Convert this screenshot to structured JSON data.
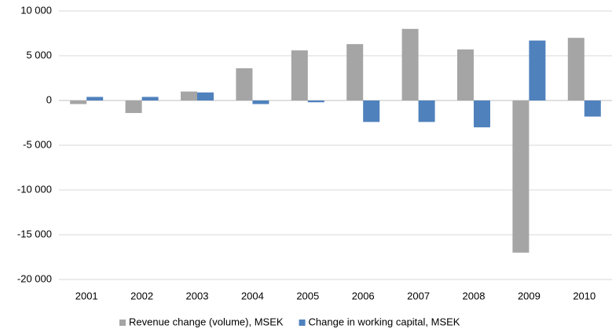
{
  "chart_data": {
    "type": "bar",
    "categories": [
      "2001",
      "2002",
      "2003",
      "2004",
      "2005",
      "2006",
      "2007",
      "2008",
      "2009",
      "2010"
    ],
    "series": [
      {
        "name": "Revenue change (volume), MSEK",
        "color": "#a5a5a5",
        "values": [
          -400,
          -1400,
          1000,
          3600,
          5600,
          6300,
          8000,
          5700,
          -17000,
          7000
        ]
      },
      {
        "name": "Change in working capital, MSEK",
        "color": "#4f81bd",
        "values": [
          400,
          400,
          900,
          -400,
          -200,
          -2400,
          -2400,
          -3000,
          6700,
          -1800
        ]
      }
    ],
    "ylim": [
      -20000,
      10000
    ],
    "yticks": [
      {
        "value": -20000,
        "label": "-20 000"
      },
      {
        "value": -15000,
        "label": "-15 000"
      },
      {
        "value": -10000,
        "label": "-10 000"
      },
      {
        "value": -5000,
        "label": "-5 000"
      },
      0,
      {
        "value": 5000,
        "label": "5 000"
      },
      {
        "value": 10000,
        "label": "10 000"
      }
    ],
    "grid": true,
    "legend": "bottom"
  }
}
